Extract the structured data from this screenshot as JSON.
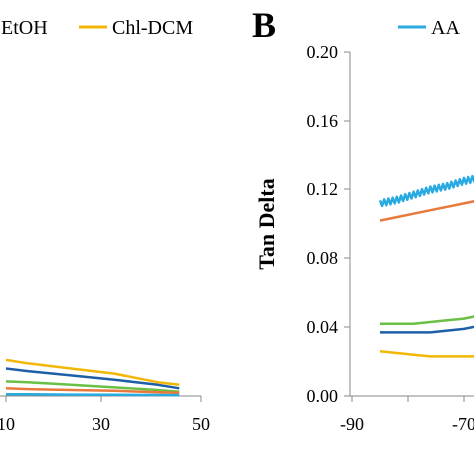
{
  "panel_letter": "B",
  "chart_data": [
    {
      "type": "line",
      "panel": "",
      "xlabel": "",
      "ylabel": "",
      "title": "",
      "xlim": [
        5,
        50
      ],
      "ylim": [
        0,
        0.2
      ],
      "x_ticks": [
        "10",
        "30",
        "50"
      ],
      "grid": false,
      "legend": [
        {
          "label": "EtOH",
          "color": "#6abf45"
        },
        {
          "label": "Chl-DCM",
          "color": "#f2b705"
        }
      ],
      "series": [
        {
          "color": "#f2b705",
          "x": [
            5,
            10,
            20,
            30,
            40,
            45
          ],
          "y": [
            0.021,
            0.019,
            0.016,
            0.013,
            0.008,
            0.0065
          ]
        },
        {
          "color": "#1f5fa8",
          "x": [
            5,
            10,
            20,
            30,
            40,
            45
          ],
          "y": [
            0.016,
            0.0145,
            0.012,
            0.0095,
            0.0065,
            0.0045
          ]
        },
        {
          "color": "#6abf45",
          "x": [
            5,
            10,
            20,
            30,
            40,
            45
          ],
          "y": [
            0.0085,
            0.008,
            0.0065,
            0.005,
            0.0035,
            0.0025
          ]
        },
        {
          "color": "#e8793a",
          "x": [
            5,
            10,
            20,
            30,
            40,
            45
          ],
          "y": [
            0.0045,
            0.004,
            0.0035,
            0.003,
            0.0022,
            0.0018
          ]
        },
        {
          "color": "#29abe2",
          "x": [
            5,
            10,
            20,
            30,
            40,
            45
          ],
          "y": [
            0.001,
            0.001,
            0.0008,
            0.0007,
            0.0006,
            0.0005
          ]
        }
      ]
    },
    {
      "type": "line",
      "panel": "B",
      "xlabel": "",
      "ylabel": "Tan Delta",
      "title": "",
      "xlim": [
        -90,
        -60
      ],
      "ylim": [
        0,
        0.2
      ],
      "y_ticks": [
        "0.00",
        "0.04",
        "0.08",
        "0.12",
        "0.16",
        "0.20"
      ],
      "x_ticks": [
        "-90",
        "-70"
      ],
      "grid": false,
      "legend": [
        {
          "label": "AA",
          "color": "#29abe2"
        }
      ],
      "series": [
        {
          "color": "#29abe2",
          "noisy": true,
          "x": [
            -85,
            -82,
            -79,
            -76,
            -73,
            -70,
            -67,
            -64
          ],
          "y": [
            0.112,
            0.114,
            0.117,
            0.12,
            0.122,
            0.125,
            0.127,
            0.129
          ]
        },
        {
          "color": "#e8793a",
          "x": [
            -85,
            -82,
            -79,
            -76,
            -73,
            -70,
            -67,
            -64
          ],
          "y": [
            0.102,
            0.104,
            0.106,
            0.108,
            0.11,
            0.112,
            0.114,
            0.116
          ]
        },
        {
          "color": "#6abf45",
          "x": [
            -85,
            -82,
            -79,
            -76,
            -73,
            -70,
            -67,
            -64
          ],
          "y": [
            0.042,
            0.042,
            0.042,
            0.043,
            0.044,
            0.045,
            0.047,
            0.05
          ]
        },
        {
          "color": "#1f5fa8",
          "x": [
            -85,
            -82,
            -79,
            -76,
            -73,
            -70,
            -67,
            -64
          ],
          "y": [
            0.037,
            0.037,
            0.037,
            0.037,
            0.038,
            0.039,
            0.041,
            0.044
          ]
        },
        {
          "color": "#f2b705",
          "x": [
            -85,
            -82,
            -79,
            -76,
            -73,
            -70,
            -67,
            -64
          ],
          "y": [
            0.026,
            0.025,
            0.024,
            0.023,
            0.023,
            0.023,
            0.023,
            0.024
          ]
        }
      ]
    }
  ]
}
